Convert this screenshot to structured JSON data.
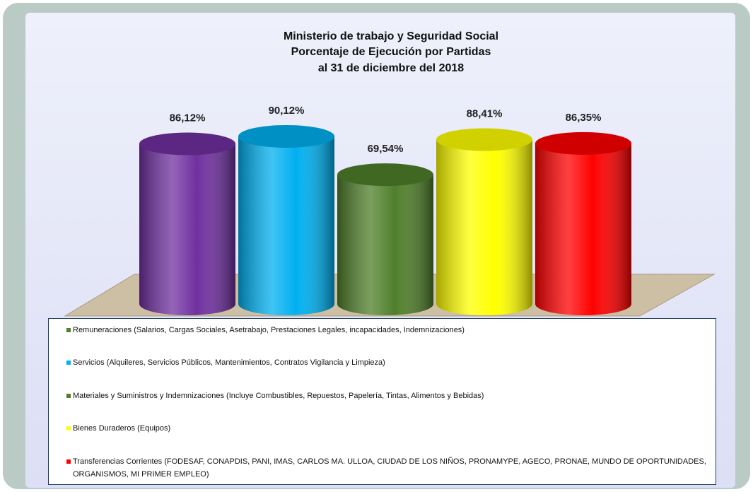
{
  "chart_data": {
    "type": "bar",
    "title": [
      "Ministerio de trabajo y Seguridad Social",
      "Porcentaje de Ejecución por Partidas",
      "al  31 de diciembre del 2018"
    ],
    "categories": [
      "Remuneraciones (Salarios, Cargas Sociales, Asetrabajo, Prestaciones Legales, incapacidades, Indemnizaciones)",
      "Servicios (Alquileres, Servicios Públicos, Mantenimientos, Contratos Vigilancia y Limpieza)",
      "Materiales y Suministros y Indemnizaciones (Incluye Combustibles, Repuestos, Papelería, Tintas, Alimentos y Bebidas)",
      "Bienes Duraderos (Equipos)",
      "Transferencias Corrientes (FODESAF, CONAPDIS, PANI, IMAS, CARLOS MA. ULLOA, CIUDAD DE LOS NIÑOS, PRONAMYPE, AGECO, PRONAE, MUNDO DE OPORTUNIDADES, ORGANISMOS, MI PRIMER EMPLEO)"
    ],
    "values": [
      86.12,
      90.12,
      69.54,
      88.41,
      86.35
    ],
    "value_labels": [
      "86,12%",
      "90,12%",
      "69,54%",
      "88,41%",
      "86,35%"
    ],
    "colors": [
      "#7030a0",
      "#00b0f0",
      "#4f7f2a",
      "#ffff00",
      "#ff0000"
    ],
    "legend_colors": [
      "#4f7f2a",
      "#00b0f0",
      "#4f7f2a",
      "#ffff00",
      "#ff0000"
    ]
  }
}
